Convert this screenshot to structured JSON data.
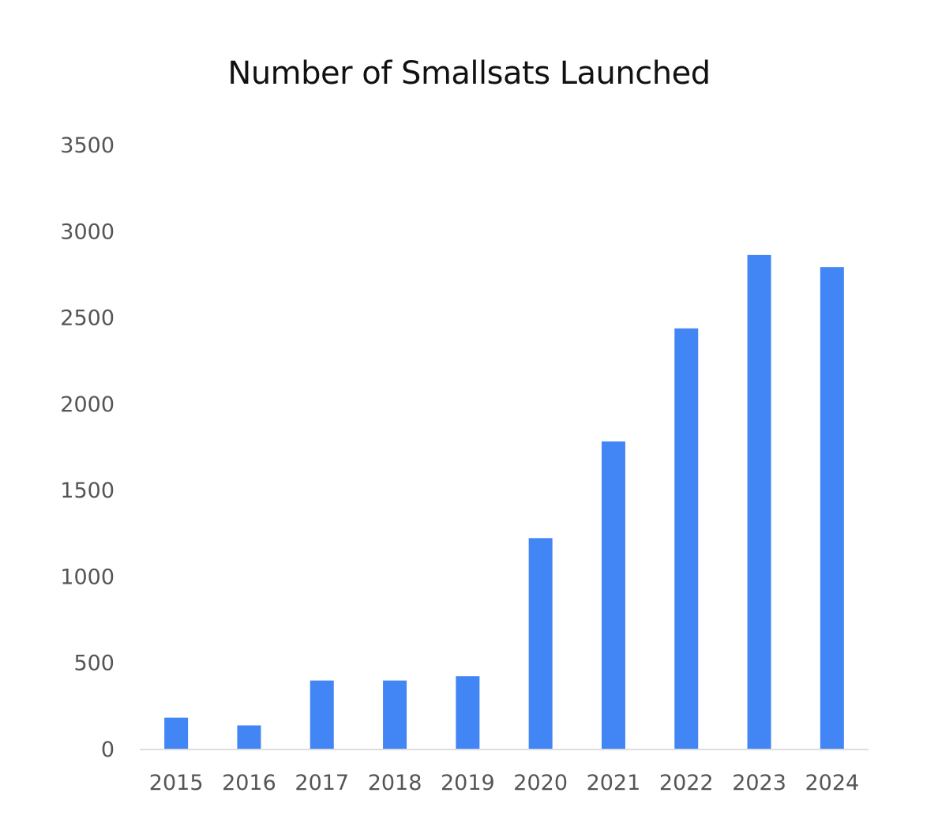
{
  "chart_data": {
    "type": "bar",
    "title": "Number of Smallsats Launched",
    "xlabel": "",
    "ylabel": "",
    "categories": [
      "2015",
      "2016",
      "2017",
      "2018",
      "2019",
      "2020",
      "2021",
      "2022",
      "2023",
      "2024"
    ],
    "values": [
      180,
      135,
      395,
      395,
      420,
      1220,
      1780,
      2435,
      2860,
      2790
    ],
    "ylim": [
      0,
      3500
    ],
    "yticks": [
      "0",
      "500",
      "1000",
      "1500",
      "2000",
      "2500",
      "3000",
      "3500"
    ],
    "grid": false,
    "legend": "none",
    "bar_color": "#4285f4",
    "axis_color": "#dddddd"
  }
}
